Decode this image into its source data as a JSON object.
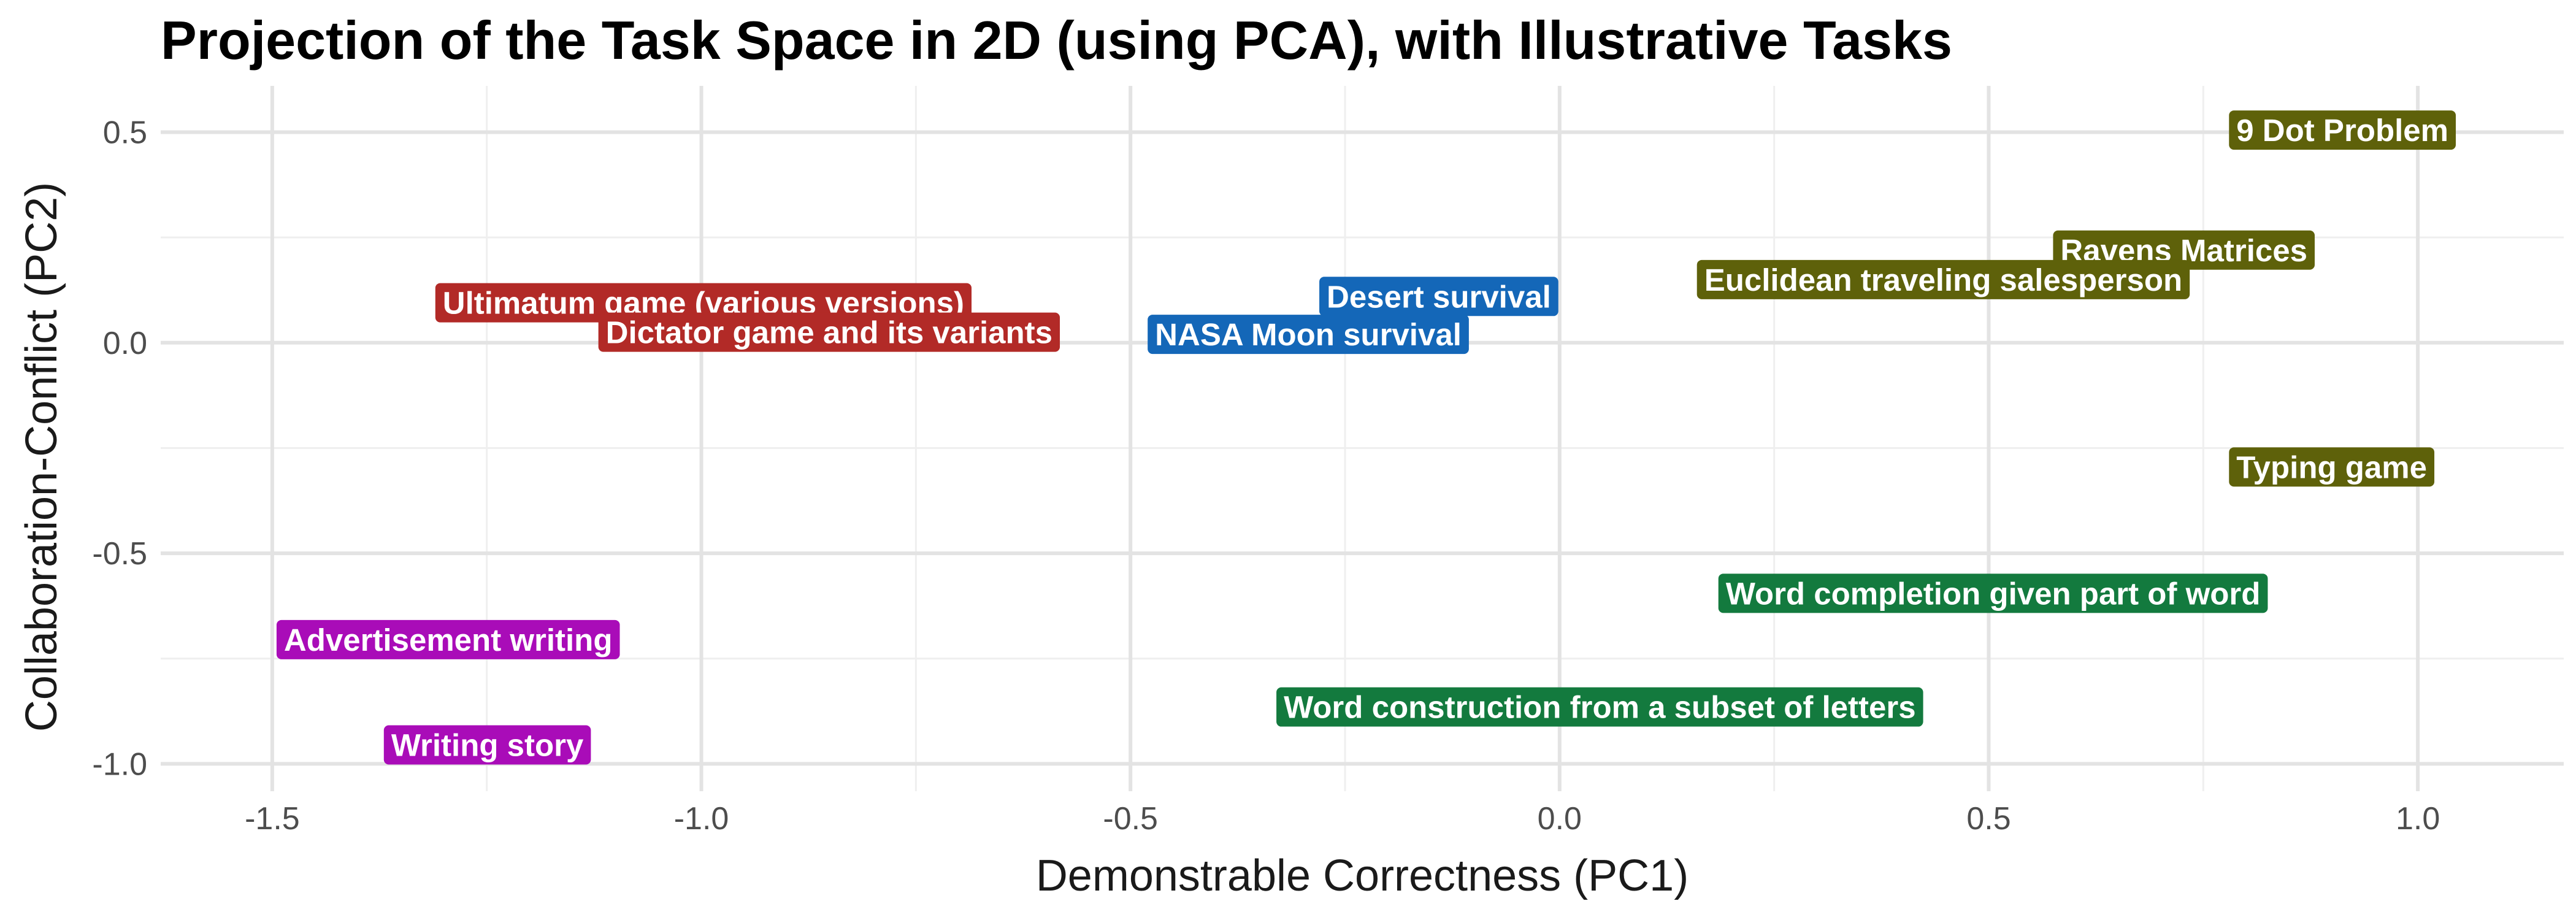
{
  "chart_data": {
    "type": "scatter",
    "title": "Projection of the Task Space in 2D (using PCA), with Illustrative Tasks",
    "xlabel": "Demonstrable Correctness (PC1)",
    "ylabel": "Collaboration-Conflict (PC2)",
    "xlim": [
      -1.63,
      1.17
    ],
    "ylim": [
      -1.065,
      0.61
    ],
    "x_ticks": [
      -1.5,
      -1.0,
      -0.5,
      0.0,
      0.5,
      1.0
    ],
    "x_tick_labels": [
      "-1.5",
      "-1.0",
      "-0.5",
      "0.0",
      "0.5",
      "1.0"
    ],
    "y_ticks": [
      0.5,
      0.0,
      -0.5,
      -1.0
    ],
    "y_tick_labels": [
      "0.5",
      "0.0",
      "-0.5",
      "-1.0"
    ],
    "x_minor_ticks": [
      -1.25,
      -0.75,
      -0.25,
      0.25,
      0.75
    ],
    "y_minor_ticks": [
      0.25,
      -0.25,
      -0.75
    ],
    "grid": true,
    "legend": "none",
    "groups": {
      "red": "#b22a27",
      "blue": "#1467b8",
      "olive": "#5e610a",
      "green": "#137a3e",
      "purple": "#a90cb8"
    },
    "points": [
      {
        "label": "9 Dot Problem",
        "x": 0.78,
        "y": 0.505,
        "group": "olive"
      },
      {
        "label": "Ravens Matrices",
        "x": 0.575,
        "y": 0.22,
        "group": "olive"
      },
      {
        "label": "Euclidean traveling salesperson",
        "x": 0.16,
        "y": 0.15,
        "group": "olive"
      },
      {
        "label": "Desert survival",
        "x": -0.28,
        "y": 0.11,
        "group": "blue"
      },
      {
        "label": "NASA Moon survival",
        "x": -0.48,
        "y": 0.02,
        "group": "blue"
      },
      {
        "label": "Ultimatum game (various versions)",
        "x": -1.31,
        "y": 0.095,
        "group": "red"
      },
      {
        "label": "Dictator game and its variants",
        "x": -1.12,
        "y": 0.025,
        "group": "red"
      },
      {
        "label": "Typing game",
        "x": 0.78,
        "y": -0.295,
        "group": "olive"
      },
      {
        "label": "Word completion given part of word",
        "x": 0.185,
        "y": -0.595,
        "group": "green"
      },
      {
        "label": "Word construction from a subset of letters",
        "x": -0.33,
        "y": -0.865,
        "group": "green"
      },
      {
        "label": "Advertisement writing",
        "x": -1.495,
        "y": -0.705,
        "group": "purple"
      },
      {
        "label": "Writing story",
        "x": -1.37,
        "y": -0.955,
        "group": "purple"
      }
    ]
  }
}
